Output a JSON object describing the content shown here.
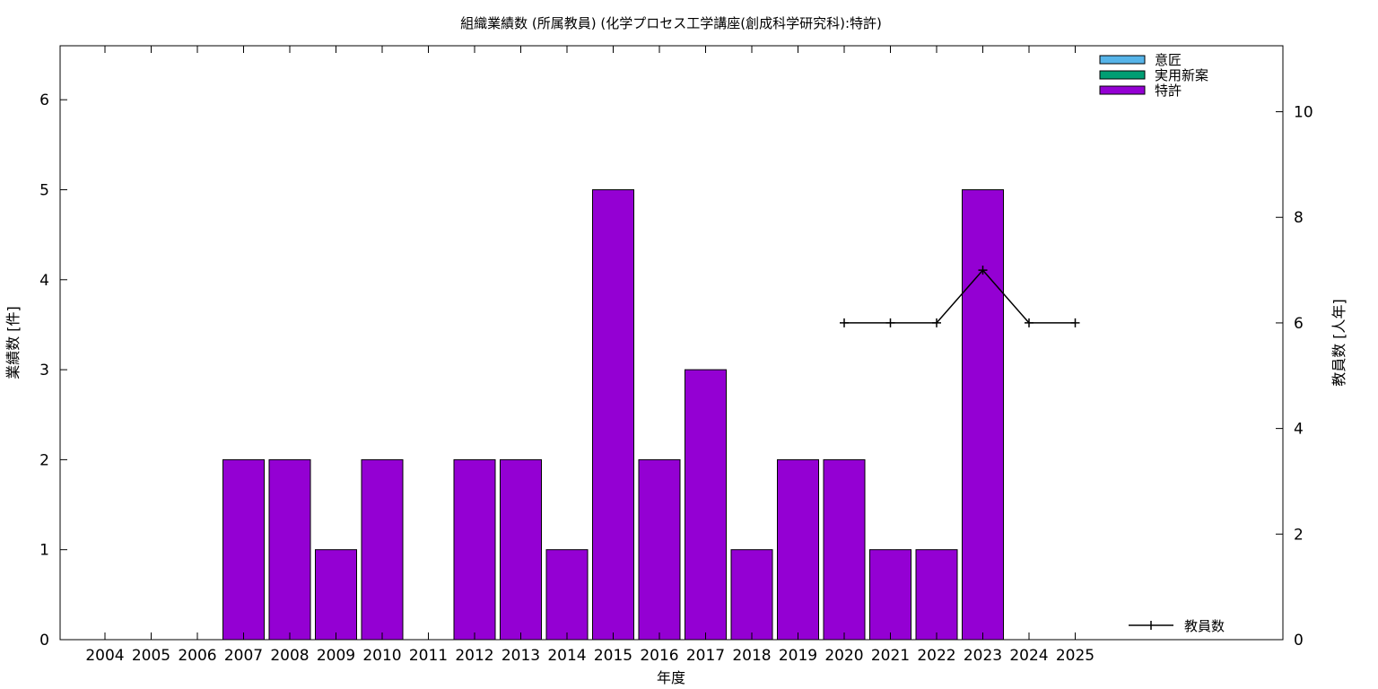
{
  "chart_data": {
    "type": "bar",
    "title": "組織業績数 (所属教員) (化学プロセス工学講座(創成科学研究科):特許)",
    "xlabel": "年度",
    "ylabel": "業績数 [件]",
    "y2label": "教員数 [人年]",
    "categories": [
      "2004",
      "2005",
      "2006",
      "2007",
      "2008",
      "2009",
      "2010",
      "2011",
      "2012",
      "2013",
      "2014",
      "2015",
      "2016",
      "2017",
      "2018",
      "2019",
      "2020",
      "2021",
      "2022",
      "2023",
      "2024",
      "2025"
    ],
    "series": [
      {
        "name": "意匠",
        "color": "#56b4e9",
        "values": [
          0,
          0,
          0,
          0,
          0,
          0,
          0,
          0,
          0,
          0,
          0,
          0,
          0,
          0,
          0,
          0,
          0,
          0,
          0,
          0,
          0,
          0
        ]
      },
      {
        "name": "実用新案",
        "color": "#009e73",
        "values": [
          0,
          0,
          0,
          0,
          0,
          0,
          0,
          0,
          0,
          0,
          0,
          0,
          0,
          0,
          0,
          0,
          0,
          0,
          0,
          0,
          0,
          0
        ]
      },
      {
        "name": "特許",
        "color": "#9400d3",
        "values": [
          0,
          0,
          0,
          2,
          2,
          1,
          2,
          0,
          2,
          2,
          1,
          5,
          2,
          3,
          1,
          2,
          2,
          1,
          1,
          5,
          0,
          0
        ]
      }
    ],
    "line_series": {
      "name": "教員数",
      "color": "#000000",
      "x": [
        "2020",
        "2021",
        "2022",
        "2023",
        "2024",
        "2025"
      ],
      "values": [
        6,
        6,
        6,
        7,
        6,
        6
      ]
    },
    "ylim": [
      0,
      6.6
    ],
    "y2lim": [
      0,
      11.25
    ],
    "yticks": [
      0,
      1,
      2,
      3,
      4,
      5,
      6
    ],
    "y2ticks": [
      0,
      2,
      4,
      6,
      8,
      10
    ],
    "grid": false,
    "legend_position": "top-right"
  }
}
